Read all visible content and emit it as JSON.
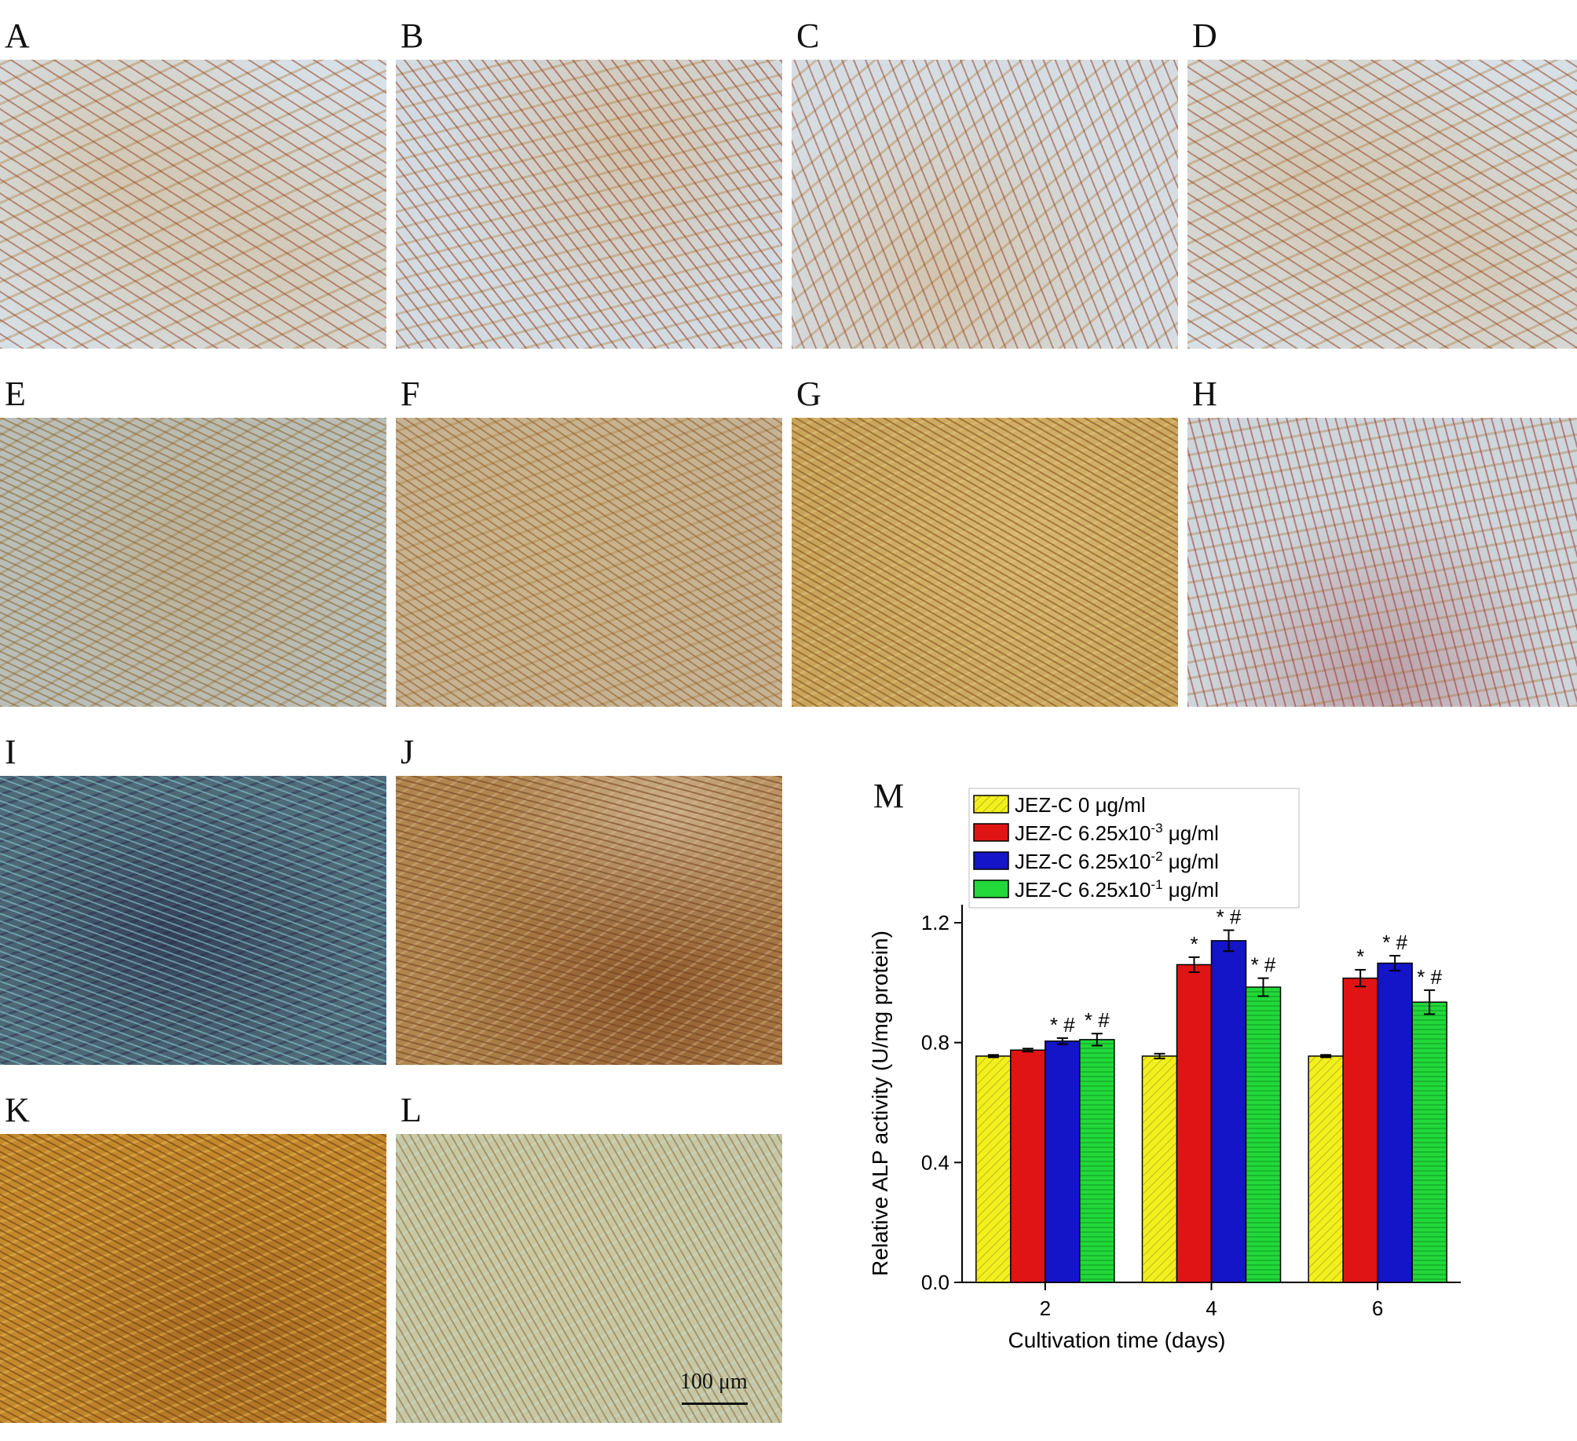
{
  "panels": {
    "a": {
      "label": "A"
    },
    "b": {
      "label": "B"
    },
    "c": {
      "label": "C"
    },
    "d": {
      "label": "D"
    },
    "e": {
      "label": "E"
    },
    "f": {
      "label": "F"
    },
    "g": {
      "label": "G"
    },
    "h": {
      "label": "H"
    },
    "i": {
      "label": "I"
    },
    "j": {
      "label": "J"
    },
    "k": {
      "label": "K"
    },
    "l": {
      "label": "L"
    },
    "m": {
      "label": "M"
    }
  },
  "scale_bar": {
    "text": "100 μm"
  },
  "colors": {
    "yellow": "#f2ef1f",
    "red": "#e01414",
    "blue": "#1414c8",
    "green": "#22d83a",
    "axis": "#000000"
  },
  "chart_data": {
    "type": "bar",
    "xlabel": "Cultivation time (days)",
    "ylabel": "Relative ALP activity (U/mg protein)",
    "categories": [
      "2",
      "4",
      "6"
    ],
    "ylim": [
      0.0,
      1.26
    ],
    "yticks": [
      "0.0",
      "0.4",
      "0.8",
      "1.2"
    ],
    "legend_placement": "top-left",
    "grid": false,
    "series": [
      {
        "name": "JEZ-C 0 μg/ml",
        "exp": "",
        "color": "#f2ef1f",
        "values": [
          0.755,
          0.755,
          0.755
        ],
        "errors": [
          0.004,
          0.008,
          0.004
        ],
        "marks": [
          "",
          "",
          ""
        ]
      },
      {
        "name": "JEZ-C 6.25x10",
        "exp": "-3",
        "unit": "μg/ml",
        "color": "#e01414",
        "values": [
          0.775,
          1.06,
          1.015
        ],
        "errors": [
          0.005,
          0.025,
          0.028
        ],
        "marks": [
          "",
          "*",
          "*"
        ]
      },
      {
        "name": "JEZ-C 6.25x10",
        "exp": "-2",
        "unit": "μg/ml",
        "color": "#1414c8",
        "values": [
          0.805,
          1.14,
          1.065
        ],
        "errors": [
          0.01,
          0.035,
          0.025
        ],
        "marks": [
          "*#",
          "*#",
          "*#"
        ]
      },
      {
        "name": "JEZ-C 6.25x10",
        "exp": "-1",
        "unit": "μg/ml",
        "color": "#22d83a",
        "values": [
          0.81,
          0.985,
          0.935
        ],
        "errors": [
          0.02,
          0.03,
          0.04
        ],
        "marks": [
          "*#",
          "*#",
          "*#"
        ]
      }
    ]
  }
}
